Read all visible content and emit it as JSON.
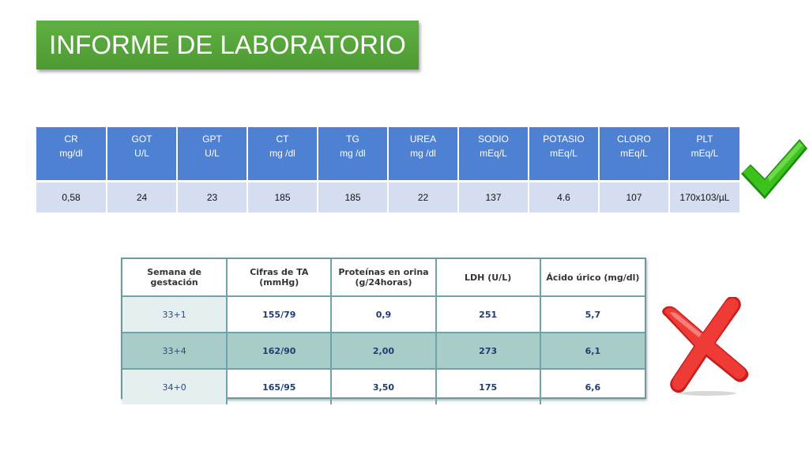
{
  "title": "INFORME DE LABORATORIO",
  "lab_table": {
    "headers": [
      {
        "name": "CR",
        "unit": "mg/dl"
      },
      {
        "name": "GOT",
        "unit": "U/L"
      },
      {
        "name": "GPT",
        "unit": "U/L"
      },
      {
        "name": "CT",
        "unit": "mg /dl"
      },
      {
        "name": "TG",
        "unit": "mg /dl"
      },
      {
        "name": "UREA",
        "unit": "mg /dl"
      },
      {
        "name": "SODIO",
        "unit": "mEq/L"
      },
      {
        "name": "POTASIO",
        "unit": "mEq/L"
      },
      {
        "name": "CLORO",
        "unit": "mEq/L"
      },
      {
        "name": "PLT",
        "unit": "mEq/L"
      }
    ],
    "values": [
      "0,58",
      "24",
      "23",
      "185",
      "185",
      "22",
      "137",
      "4.6",
      "107",
      "170x103/µL"
    ]
  },
  "check_icon": {
    "icon": "green-check-icon",
    "color": "#3cc21a"
  },
  "gestation_table": {
    "headers": [
      [
        "Semana de",
        "gestación"
      ],
      [
        "Cifras de TA",
        "(mmHg)"
      ],
      [
        "Proteínas en orina",
        "(g/24horas)"
      ],
      [
        "LDH (U/L)"
      ],
      [
        "Ácido úrico (mg/dl)"
      ]
    ],
    "rows": [
      [
        "33+1",
        "155/79",
        "0,9",
        "251",
        "5,7"
      ],
      [
        "33+4",
        "162/90",
        "2,00",
        "273",
        "6,1"
      ],
      [
        "34+0",
        "165/95",
        "3,50",
        "175",
        "6,6"
      ]
    ]
  },
  "cross_icon": {
    "icon": "red-cross-icon",
    "color": "#e8322c"
  }
}
